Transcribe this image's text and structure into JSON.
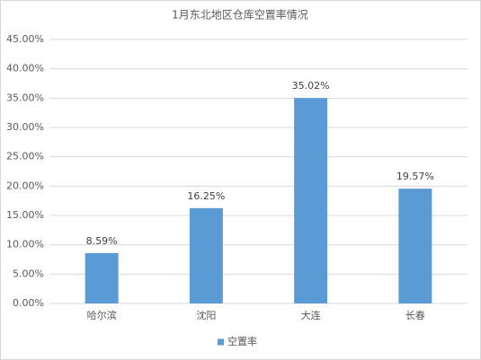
{
  "chart_data": {
    "type": "bar",
    "title": "1月东北地区仓库空置率情况",
    "categories": [
      "哈尔滨",
      "沈阳",
      "大连",
      "长春"
    ],
    "series": [
      {
        "name": "空置率",
        "color": "#5b9bd5",
        "values": [
          8.59,
          16.25,
          35.02,
          19.57
        ],
        "value_labels": [
          "8.59%",
          "16.25%",
          "35.02%",
          "19.57%"
        ]
      }
    ],
    "ylim": [
      0,
      45
    ],
    "yticks": [
      {
        "value": 0,
        "label": "0.00%"
      },
      {
        "value": 5,
        "label": "5.00%"
      },
      {
        "value": 10,
        "label": "10.00%"
      },
      {
        "value": 15,
        "label": "15.00%"
      },
      {
        "value": 20,
        "label": "20.00%"
      },
      {
        "value": 25,
        "label": "25.00%"
      },
      {
        "value": 30,
        "label": "30.00%"
      },
      {
        "value": 35,
        "label": "35.00%"
      },
      {
        "value": 40,
        "label": "40.00%"
      },
      {
        "value": 45,
        "label": "45.00%"
      }
    ],
    "grid": true,
    "legend": "bottom"
  }
}
